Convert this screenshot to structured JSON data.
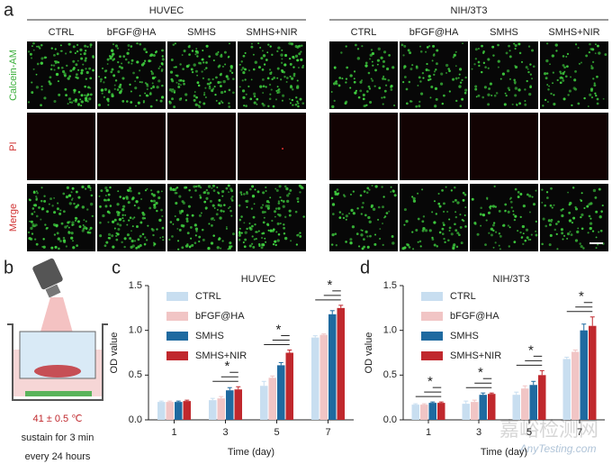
{
  "panel_labels": [
    "a",
    "b",
    "c",
    "d"
  ],
  "panel_a": {
    "groups": [
      "HUVEC",
      "NIH/3T3"
    ],
    "columns": [
      "CTRL",
      "bFGF@HA",
      "SMHS",
      "SMHS+NIR"
    ],
    "rows": [
      "Calcein-AM",
      "PI",
      "Merge"
    ]
  },
  "panel_b": {
    "temperature": "41 ± 0.5 ℃",
    "duration": "sustain for 3 min",
    "interval": "every 24 hours"
  },
  "watermark": [
    "嘉峪检测网",
    "AnyTesting.com"
  ],
  "chart_data": [
    {
      "type": "bar",
      "title": "HUVEC",
      "x_label": "Time (day)",
      "y_label": "OD value",
      "categories": [
        "1",
        "3",
        "5",
        "7"
      ],
      "series": [
        {
          "name": "CTRL",
          "color": "#c8def0",
          "values": [
            0.2,
            0.22,
            0.38,
            0.92
          ],
          "errors": [
            0.01,
            0.02,
            0.05,
            0.02
          ]
        },
        {
          "name": "bFGF@HA",
          "color": "#f1c5c5",
          "values": [
            0.2,
            0.24,
            0.47,
            0.95
          ],
          "errors": [
            0.01,
            0.02,
            0.02,
            0.01
          ]
        },
        {
          "name": "SMHS",
          "color": "#1f6aa0",
          "values": [
            0.2,
            0.33,
            0.61,
            1.18
          ],
          "errors": [
            0.01,
            0.03,
            0.03,
            0.04
          ]
        },
        {
          "name": "SMHS+NIR",
          "color": "#c0282d",
          "values": [
            0.21,
            0.34,
            0.75,
            1.25
          ],
          "errors": [
            0.01,
            0.03,
            0.03,
            0.03
          ]
        }
      ],
      "significance": [
        null,
        "*",
        "*",
        "*"
      ],
      "ylim": [
        0,
        1.5
      ],
      "yticks": [
        {
          "value": 0,
          "label": "0.0"
        },
        0.5,
        {
          "value": 1,
          "label": "1.0"
        },
        1.5
      ]
    },
    {
      "type": "bar",
      "title": "NIH/3T3",
      "x_label": "Time (day)",
      "y_label": "OD value",
      "categories": [
        "1",
        "3",
        "5",
        "7"
      ],
      "series": [
        {
          "name": "CTRL",
          "color": "#c8def0",
          "values": [
            0.17,
            0.18,
            0.28,
            0.68
          ],
          "errors": [
            0.01,
            0.03,
            0.03,
            0.02
          ]
        },
        {
          "name": "bFGF@HA",
          "color": "#f1c5c5",
          "values": [
            0.17,
            0.2,
            0.35,
            0.76
          ],
          "errors": [
            0.01,
            0.02,
            0.03,
            0.02
          ]
        },
        {
          "name": "SMHS",
          "color": "#1f6aa0",
          "values": [
            0.19,
            0.28,
            0.39,
            1.0
          ],
          "errors": [
            0.01,
            0.02,
            0.04,
            0.07
          ]
        },
        {
          "name": "SMHS+NIR",
          "color": "#c0282d",
          "values": [
            0.19,
            0.29,
            0.5,
            1.05
          ],
          "errors": [
            0.01,
            0.01,
            0.05,
            0.1
          ]
        }
      ],
      "significance": [
        "*",
        "*",
        "*",
        "*"
      ],
      "ylim": [
        0,
        1.5
      ],
      "yticks": [
        {
          "value": 0,
          "label": "0.0"
        },
        0.5,
        {
          "value": 1,
          "label": "1.0"
        },
        1.5
      ]
    }
  ]
}
